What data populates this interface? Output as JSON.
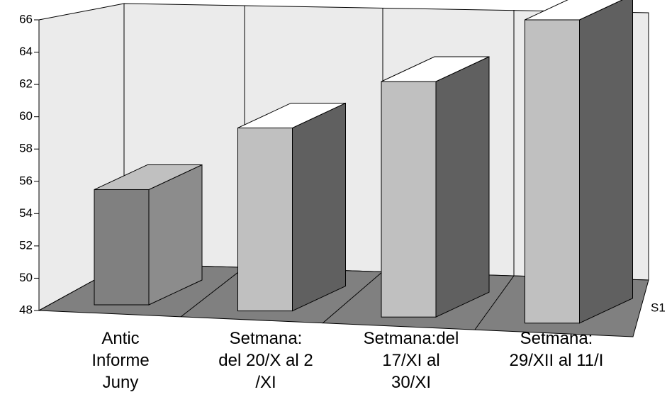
{
  "chart_data": {
    "type": "bar3d",
    "categories": [
      "Antic\nInforme\nJuny",
      "Setmana:\ndel 20/X al 2\n/XI",
      "Setmana:del\n17/XI al\n30/XI",
      "Setmana:\n29/XII al 11/I"
    ],
    "series": [
      {
        "name": "S1",
        "values": [
          54.8,
          58.8,
          61.9,
          65.9
        ]
      }
    ],
    "colors": [
      {
        "front": "#808080",
        "top": "#c0c0c0",
        "side": "#8c8c8c"
      },
      {
        "front": "#c0c0c0",
        "top": "#ffffff",
        "side": "#606060"
      },
      {
        "front": "#c0c0c0",
        "top": "#ffffff",
        "side": "#606060"
      },
      {
        "front": "#c0c0c0",
        "top": "#ffffff",
        "side": "#606060"
      }
    ],
    "ylim": [
      48,
      66
    ],
    "yticks": [
      48,
      50,
      52,
      54,
      56,
      58,
      60,
      62,
      64,
      66
    ]
  }
}
